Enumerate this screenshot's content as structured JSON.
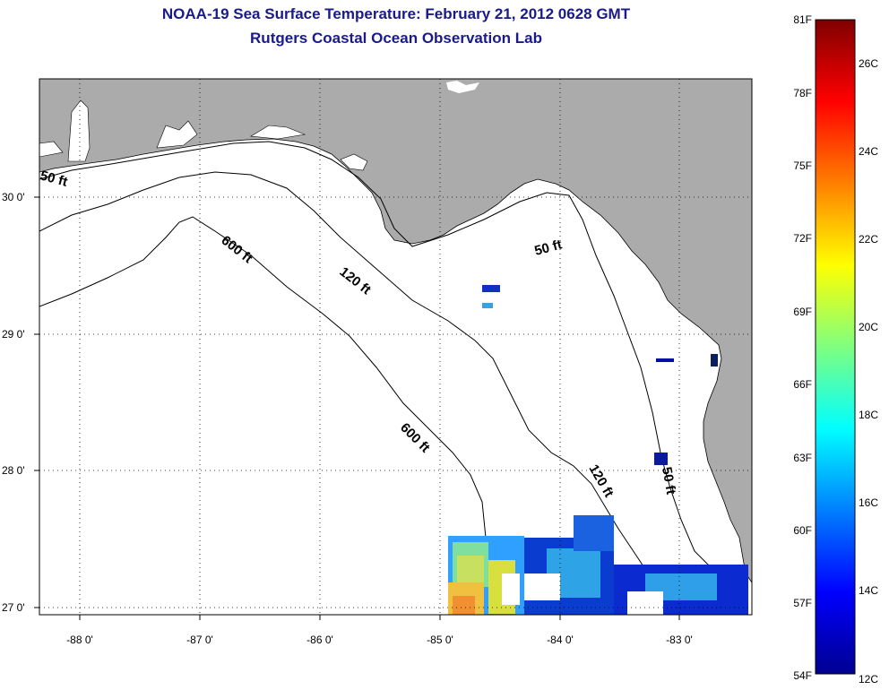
{
  "title": {
    "line1": "NOAA-19 Sea Surface Temperature:  February 21, 2012 0628 GMT",
    "line2": "Rutgers Coastal Ocean Observation Lab"
  },
  "map": {
    "lon_ticks": [
      "-88 0'",
      "-87 0'",
      "-86 0'",
      "-85 0'",
      "-84 0'",
      "-83 0'"
    ],
    "lat_ticks": [
      "30 0'",
      "29 0'",
      "28 0'",
      "27 0'"
    ],
    "contours": [
      "50 ft",
      "600 ft",
      "120 ft",
      "50 ft",
      "600 ft",
      "120 ft",
      "50 ft"
    ],
    "grid": true,
    "land_color": "#ababab",
    "ocean_color": "#ffffff"
  },
  "colorbar": {
    "fahrenheit": [
      "81F",
      "78F",
      "75F",
      "72F",
      "69F",
      "66F",
      "63F",
      "60F",
      "57F",
      "54F"
    ],
    "celsius": [
      "26C",
      "24C",
      "22C",
      "20C",
      "18C",
      "16C",
      "14C",
      "12C"
    ],
    "colormap": "jet"
  }
}
